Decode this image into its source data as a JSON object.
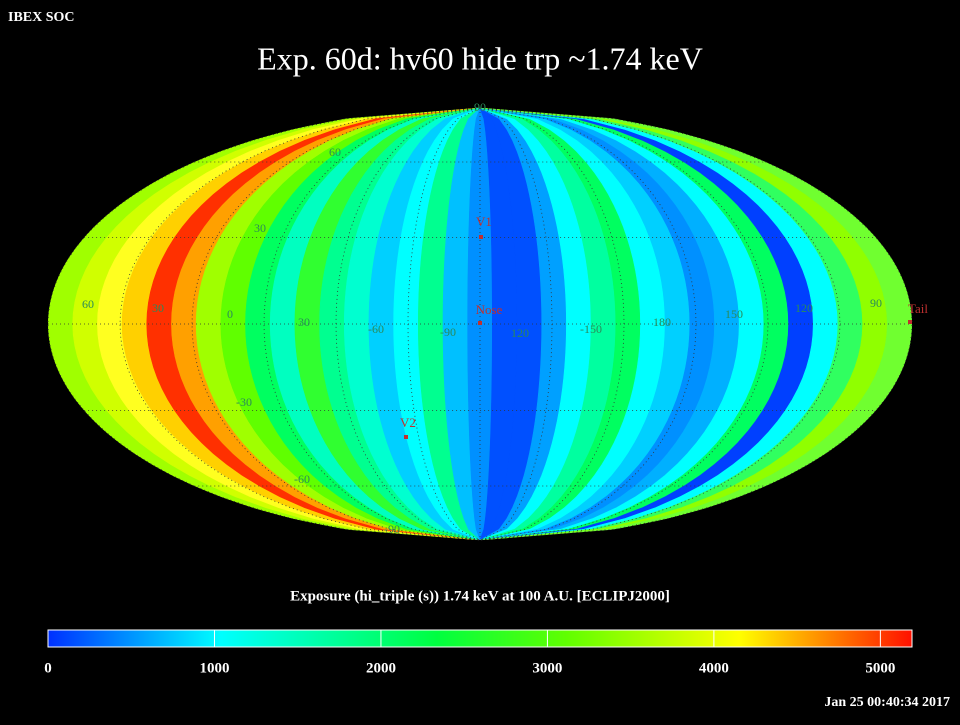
{
  "header": {
    "corner": "IBEX SOC",
    "title": "Exp.   60d: hv60 hide trp ~1.74 keV",
    "timestamp": "Jan 25 00:40:34 2017"
  },
  "latitude_labels": [
    "90",
    "60",
    "30",
    "-30",
    "-60",
    "-90"
  ],
  "longitude_labels": [
    "60",
    "30",
    "0",
    "30",
    "-60",
    "-90",
    "120",
    "-150",
    "180",
    "150",
    "120",
    "90"
  ],
  "markers": [
    "V1",
    "Nose",
    "V2",
    "Tail"
  ],
  "colorbar": {
    "title": "Exposure (hi_triple (s))  1.74 keV at 100 A.U. [ECLIPJ2000]",
    "range": [
      0,
      5190
    ],
    "ticks": [
      0,
      1000,
      2000,
      3000,
      4000,
      5000
    ]
  }
}
